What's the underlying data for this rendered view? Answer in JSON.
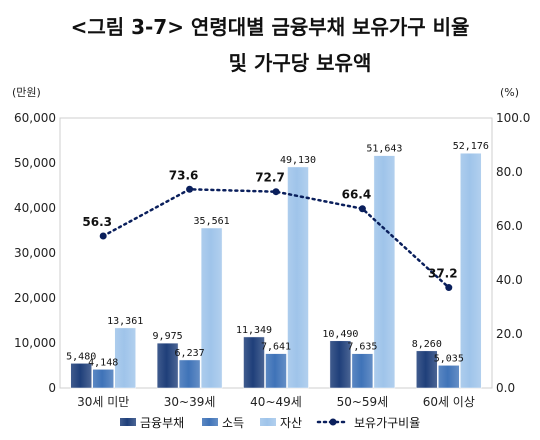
{
  "chart_data": {
    "type": "bar",
    "title_line1": "<그림 3-7> 연령대별 금융부채 보유가구 비율",
    "title_line2": "및 가구당 보유액",
    "left_unit": "(만원)",
    "right_unit": "(%)",
    "categories": [
      "30세 미만",
      "30~39세",
      "40~49세",
      "50~59세",
      "60세 이상"
    ],
    "series": [
      {
        "name": "금융부채",
        "values": [
          5480,
          9975,
          11349,
          10490,
          8260
        ],
        "labels": [
          "5,480",
          "9,975",
          "11,349",
          "10,490",
          "8,260"
        ],
        "color": "#1f3f7a",
        "axis": "left"
      },
      {
        "name": "소득",
        "values": [
          4148,
          6237,
          7641,
          7635,
          5035
        ],
        "labels": [
          "4,148",
          "6,237",
          "7,641",
          "7,635",
          "5,035"
        ],
        "color": "#3f73b8",
        "axis": "left"
      },
      {
        "name": "자산",
        "values": [
          13361,
          35561,
          49130,
          51643,
          52176
        ],
        "labels": [
          "13,361",
          "35,561",
          "49,130",
          "51,643",
          "52,176"
        ],
        "color": "#9fc4ea",
        "axis": "left"
      },
      {
        "name": "보유가구비율",
        "type": "line",
        "values": [
          56.3,
          73.6,
          72.7,
          66.4,
          37.2
        ],
        "labels": [
          "56.3",
          "73.6",
          "72.7",
          "66.4",
          "37.2"
        ],
        "color": "#0a1f5c",
        "axis": "right"
      }
    ],
    "ylim_left": [
      0,
      60000
    ],
    "ylim_right": [
      0,
      100
    ],
    "yticks_left": [
      "0",
      "10,000",
      "20,000",
      "30,000",
      "40,000",
      "50,000",
      "60,000"
    ],
    "yticks_right": [
      "0.0",
      "20.0",
      "40.0",
      "60.0",
      "80.0",
      "100.0"
    ],
    "legend_position": "bottom",
    "grid": false
  }
}
